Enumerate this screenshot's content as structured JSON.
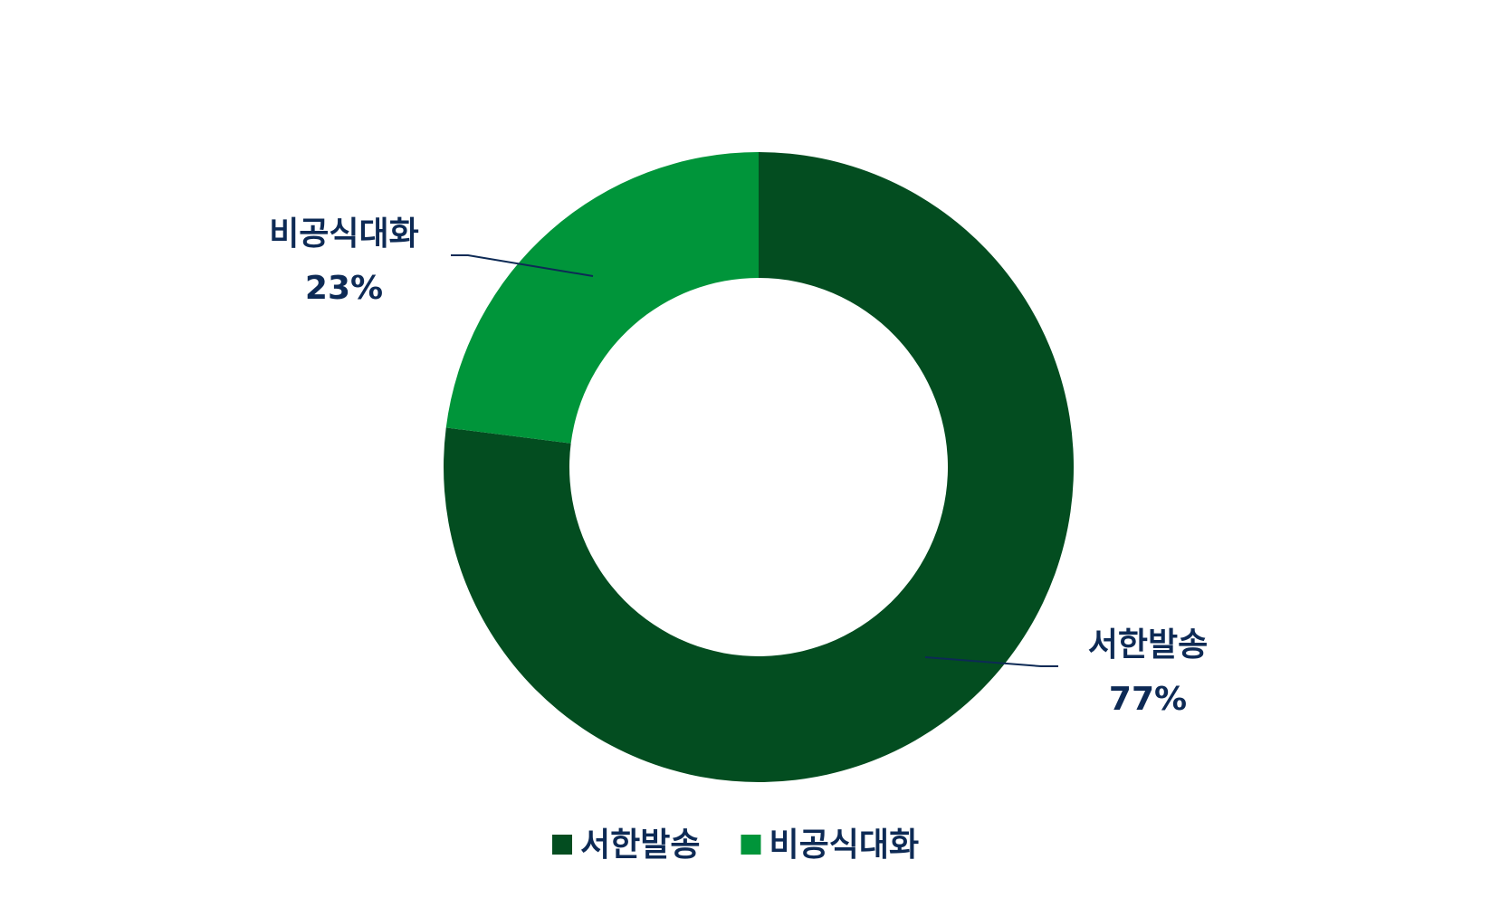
{
  "chart_data": {
    "type": "pie",
    "donut": true,
    "categories": [
      "서한발송",
      "비공식대화"
    ],
    "values": [
      77,
      23
    ],
    "value_labels": [
      "77%",
      "23%"
    ],
    "colors": [
      "#034d20",
      "#00953a"
    ],
    "legend": "bottom"
  }
}
